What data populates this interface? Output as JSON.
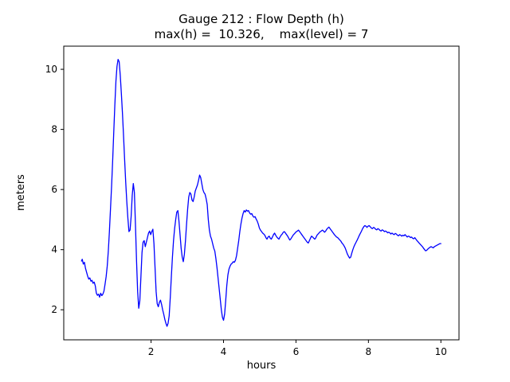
{
  "figure": {
    "title_line1": "Gauge 212 : Flow Depth (h)",
    "title_line2": "max(h) =  10.326,    max(level) = 7",
    "xlabel": "hours",
    "ylabel": "meters"
  },
  "chart_data": {
    "type": "line",
    "title": "Gauge 212 : Flow Depth (h)",
    "subtitle": "max(h) =  10.326,    max(level) = 7",
    "xlabel": "hours",
    "ylabel": "meters",
    "legend": "none",
    "grid": false,
    "line_color": "#0000ff",
    "line_width": 1.3,
    "xlim": [
      -0.41,
      10.5
    ],
    "ylim": [
      1.0,
      10.77
    ],
    "x_ticks": [
      2,
      4,
      6,
      8,
      10
    ],
    "y_ticks": [
      2,
      4,
      6,
      8,
      10
    ],
    "max_h": 10.326,
    "max_level": 7,
    "points": [
      [
        0.08,
        3.62
      ],
      [
        0.1,
        3.68
      ],
      [
        0.13,
        3.52
      ],
      [
        0.16,
        3.58
      ],
      [
        0.19,
        3.38
      ],
      [
        0.22,
        3.25
      ],
      [
        0.25,
        3.12
      ],
      [
        0.28,
        3.02
      ],
      [
        0.31,
        3.06
      ],
      [
        0.34,
        2.95
      ],
      [
        0.37,
        2.98
      ],
      [
        0.4,
        2.88
      ],
      [
        0.43,
        2.92
      ],
      [
        0.46,
        2.8
      ],
      [
        0.49,
        2.55
      ],
      [
        0.52,
        2.48
      ],
      [
        0.55,
        2.52
      ],
      [
        0.58,
        2.42
      ],
      [
        0.61,
        2.55
      ],
      [
        0.64,
        2.47
      ],
      [
        0.67,
        2.52
      ],
      [
        0.7,
        2.62
      ],
      [
        0.73,
        2.85
      ],
      [
        0.76,
        3.1
      ],
      [
        0.79,
        3.45
      ],
      [
        0.82,
        3.95
      ],
      [
        0.85,
        4.6
      ],
      [
        0.88,
        5.35
      ],
      [
        0.91,
        6.1
      ],
      [
        0.94,
        6.95
      ],
      [
        0.97,
        7.9
      ],
      [
        1.0,
        8.8
      ],
      [
        1.03,
        9.6
      ],
      [
        1.06,
        10.1
      ],
      [
        1.09,
        10.33
      ],
      [
        1.12,
        10.25
      ],
      [
        1.15,
        9.8
      ],
      [
        1.18,
        9.2
      ],
      [
        1.21,
        8.55
      ],
      [
        1.24,
        7.8
      ],
      [
        1.27,
        7.0
      ],
      [
        1.3,
        6.25
      ],
      [
        1.33,
        5.6
      ],
      [
        1.36,
        5.05
      ],
      [
        1.39,
        4.6
      ],
      [
        1.42,
        4.65
      ],
      [
        1.45,
        5.1
      ],
      [
        1.48,
        5.8
      ],
      [
        1.51,
        6.2
      ],
      [
        1.54,
        5.9
      ],
      [
        1.57,
        4.8
      ],
      [
        1.6,
        3.6
      ],
      [
        1.63,
        2.6
      ],
      [
        1.66,
        2.05
      ],
      [
        1.69,
        2.3
      ],
      [
        1.72,
        3.1
      ],
      [
        1.75,
        3.9
      ],
      [
        1.78,
        4.25
      ],
      [
        1.81,
        4.3
      ],
      [
        1.84,
        4.1
      ],
      [
        1.87,
        4.25
      ],
      [
        1.9,
        4.4
      ],
      [
        1.93,
        4.55
      ],
      [
        1.96,
        4.62
      ],
      [
        1.99,
        4.5
      ],
      [
        2.02,
        4.6
      ],
      [
        2.05,
        4.68
      ],
      [
        2.08,
        4.2
      ],
      [
        2.11,
        3.4
      ],
      [
        2.14,
        2.6
      ],
      [
        2.17,
        2.2
      ],
      [
        2.2,
        2.1
      ],
      [
        2.23,
        2.25
      ],
      [
        2.26,
        2.32
      ],
      [
        2.29,
        2.18
      ],
      [
        2.32,
        2.0
      ],
      [
        2.35,
        1.85
      ],
      [
        2.38,
        1.68
      ],
      [
        2.41,
        1.55
      ],
      [
        2.44,
        1.45
      ],
      [
        2.47,
        1.55
      ],
      [
        2.5,
        1.8
      ],
      [
        2.53,
        2.4
      ],
      [
        2.56,
        3.1
      ],
      [
        2.59,
        3.75
      ],
      [
        2.62,
        4.3
      ],
      [
        2.65,
        4.7
      ],
      [
        2.68,
        5.0
      ],
      [
        2.71,
        5.25
      ],
      [
        2.74,
        5.3
      ],
      [
        2.77,
        4.95
      ],
      [
        2.8,
        4.5
      ],
      [
        2.83,
        4.05
      ],
      [
        2.86,
        3.75
      ],
      [
        2.89,
        3.6
      ],
      [
        2.92,
        3.85
      ],
      [
        2.95,
        4.3
      ],
      [
        2.98,
        4.85
      ],
      [
        3.01,
        5.35
      ],
      [
        3.04,
        5.75
      ],
      [
        3.07,
        5.9
      ],
      [
        3.1,
        5.85
      ],
      [
        3.13,
        5.65
      ],
      [
        3.16,
        5.6
      ],
      [
        3.19,
        5.75
      ],
      [
        3.22,
        5.95
      ],
      [
        3.25,
        6.05
      ],
      [
        3.28,
        6.15
      ],
      [
        3.31,
        6.3
      ],
      [
        3.34,
        6.48
      ],
      [
        3.37,
        6.4
      ],
      [
        3.4,
        6.2
      ],
      [
        3.43,
        6.0
      ],
      [
        3.46,
        5.9
      ],
      [
        3.49,
        5.85
      ],
      [
        3.52,
        5.7
      ],
      [
        3.55,
        5.5
      ],
      [
        3.58,
        5.0
      ],
      [
        3.61,
        4.65
      ],
      [
        3.64,
        4.45
      ],
      [
        3.67,
        4.35
      ],
      [
        3.7,
        4.2
      ],
      [
        3.73,
        4.05
      ],
      [
        3.76,
        3.95
      ],
      [
        3.79,
        3.7
      ],
      [
        3.82,
        3.4
      ],
      [
        3.85,
        3.05
      ],
      [
        3.88,
        2.7
      ],
      [
        3.91,
        2.35
      ],
      [
        3.94,
        2.0
      ],
      [
        3.97,
        1.75
      ],
      [
        4.0,
        1.65
      ],
      [
        4.03,
        1.85
      ],
      [
        4.06,
        2.3
      ],
      [
        4.09,
        2.8
      ],
      [
        4.12,
        3.15
      ],
      [
        4.15,
        3.35
      ],
      [
        4.18,
        3.45
      ],
      [
        4.21,
        3.52
      ],
      [
        4.24,
        3.55
      ],
      [
        4.27,
        3.6
      ],
      [
        4.3,
        3.58
      ],
      [
        4.33,
        3.65
      ],
      [
        4.36,
        3.8
      ],
      [
        4.39,
        4.05
      ],
      [
        4.42,
        4.3
      ],
      [
        4.45,
        4.6
      ],
      [
        4.48,
        4.85
      ],
      [
        4.51,
        5.05
      ],
      [
        4.54,
        5.2
      ],
      [
        4.57,
        5.3
      ],
      [
        4.6,
        5.25
      ],
      [
        4.63,
        5.32
      ],
      [
        4.66,
        5.28
      ],
      [
        4.69,
        5.3
      ],
      [
        4.72,
        5.22
      ],
      [
        4.75,
        5.18
      ],
      [
        4.78,
        5.2
      ],
      [
        4.81,
        5.12
      ],
      [
        4.84,
        5.08
      ],
      [
        4.87,
        5.1
      ],
      [
        4.9,
        5.02
      ],
      [
        4.93,
        4.95
      ],
      [
        4.96,
        4.85
      ],
      [
        4.99,
        4.72
      ],
      [
        5.02,
        4.65
      ],
      [
        5.05,
        4.6
      ],
      [
        5.08,
        4.55
      ],
      [
        5.11,
        4.52
      ],
      [
        5.14,
        4.48
      ],
      [
        5.17,
        4.4
      ],
      [
        5.2,
        4.35
      ],
      [
        5.23,
        4.42
      ],
      [
        5.26,
        4.45
      ],
      [
        5.29,
        4.38
      ],
      [
        5.32,
        4.35
      ],
      [
        5.35,
        4.42
      ],
      [
        5.38,
        4.5
      ],
      [
        5.41,
        4.55
      ],
      [
        5.44,
        4.48
      ],
      [
        5.47,
        4.42
      ],
      [
        5.5,
        4.38
      ],
      [
        5.53,
        4.35
      ],
      [
        5.56,
        4.42
      ],
      [
        5.59,
        4.48
      ],
      [
        5.62,
        4.52
      ],
      [
        5.65,
        4.58
      ],
      [
        5.68,
        4.6
      ],
      [
        5.71,
        4.55
      ],
      [
        5.74,
        4.5
      ],
      [
        5.77,
        4.45
      ],
      [
        5.8,
        4.38
      ],
      [
        5.83,
        4.32
      ],
      [
        5.86,
        4.36
      ],
      [
        5.89,
        4.42
      ],
      [
        5.92,
        4.48
      ],
      [
        5.95,
        4.52
      ],
      [
        5.98,
        4.56
      ],
      [
        6.01,
        4.6
      ],
      [
        6.04,
        4.62
      ],
      [
        6.07,
        4.65
      ],
      [
        6.1,
        4.6
      ],
      [
        6.13,
        4.55
      ],
      [
        6.16,
        4.5
      ],
      [
        6.19,
        4.45
      ],
      [
        6.22,
        4.4
      ],
      [
        6.25,
        4.35
      ],
      [
        6.28,
        4.3
      ],
      [
        6.31,
        4.25
      ],
      [
        6.34,
        4.22
      ],
      [
        6.37,
        4.3
      ],
      [
        6.4,
        4.38
      ],
      [
        6.43,
        4.45
      ],
      [
        6.46,
        4.42
      ],
      [
        6.49,
        4.38
      ],
      [
        6.52,
        4.35
      ],
      [
        6.55,
        4.4
      ],
      [
        6.58,
        4.48
      ],
      [
        6.61,
        4.52
      ],
      [
        6.64,
        4.56
      ],
      [
        6.67,
        4.6
      ],
      [
        6.7,
        4.62
      ],
      [
        6.73,
        4.65
      ],
      [
        6.76,
        4.62
      ],
      [
        6.79,
        4.58
      ],
      [
        6.82,
        4.62
      ],
      [
        6.85,
        4.68
      ],
      [
        6.88,
        4.72
      ],
      [
        6.91,
        4.75
      ],
      [
        6.94,
        4.7
      ],
      [
        6.97,
        4.65
      ],
      [
        7.0,
        4.6
      ],
      [
        7.03,
        4.55
      ],
      [
        7.06,
        4.5
      ],
      [
        7.09,
        4.46
      ],
      [
        7.12,
        4.42
      ],
      [
        7.15,
        4.4
      ],
      [
        7.18,
        4.36
      ],
      [
        7.21,
        4.32
      ],
      [
        7.24,
        4.28
      ],
      [
        7.27,
        4.22
      ],
      [
        7.3,
        4.18
      ],
      [
        7.33,
        4.12
      ],
      [
        7.36,
        4.05
      ],
      [
        7.39,
        3.95
      ],
      [
        7.42,
        3.85
      ],
      [
        7.45,
        3.78
      ],
      [
        7.48,
        3.72
      ],
      [
        7.51,
        3.75
      ],
      [
        7.54,
        3.88
      ],
      [
        7.57,
        4.0
      ],
      [
        7.6,
        4.1
      ],
      [
        7.63,
        4.18
      ],
      [
        7.66,
        4.25
      ],
      [
        7.69,
        4.32
      ],
      [
        7.72,
        4.4
      ],
      [
        7.75,
        4.48
      ],
      [
        7.78,
        4.55
      ],
      [
        7.81,
        4.62
      ],
      [
        7.84,
        4.7
      ],
      [
        7.87,
        4.76
      ],
      [
        7.9,
        4.8
      ],
      [
        7.93,
        4.78
      ],
      [
        7.96,
        4.74
      ],
      [
        7.99,
        4.78
      ],
      [
        8.02,
        4.8
      ],
      [
        8.05,
        4.76
      ],
      [
        8.08,
        4.72
      ],
      [
        8.11,
        4.7
      ],
      [
        8.14,
        4.74
      ],
      [
        8.17,
        4.72
      ],
      [
        8.2,
        4.68
      ],
      [
        8.23,
        4.66
      ],
      [
        8.26,
        4.7
      ],
      [
        8.29,
        4.68
      ],
      [
        8.32,
        4.64
      ],
      [
        8.35,
        4.62
      ],
      [
        8.38,
        4.66
      ],
      [
        8.41,
        4.64
      ],
      [
        8.44,
        4.6
      ],
      [
        8.47,
        4.62
      ],
      [
        8.5,
        4.6
      ],
      [
        8.53,
        4.56
      ],
      [
        8.56,
        4.58
      ],
      [
        8.59,
        4.56
      ],
      [
        8.62,
        4.52
      ],
      [
        8.65,
        4.55
      ],
      [
        8.68,
        4.52
      ],
      [
        8.71,
        4.5
      ],
      [
        8.74,
        4.54
      ],
      [
        8.77,
        4.52
      ],
      [
        8.8,
        4.48
      ],
      [
        8.83,
        4.46
      ],
      [
        8.86,
        4.5
      ],
      [
        8.89,
        4.48
      ],
      [
        8.92,
        4.45
      ],
      [
        8.95,
        4.48
      ],
      [
        8.98,
        4.46
      ],
      [
        9.01,
        4.5
      ],
      [
        9.04,
        4.46
      ],
      [
        9.07,
        4.42
      ],
      [
        9.1,
        4.45
      ],
      [
        9.13,
        4.44
      ],
      [
        9.16,
        4.4
      ],
      [
        9.19,
        4.42
      ],
      [
        9.22,
        4.38
      ],
      [
        9.25,
        4.36
      ],
      [
        9.28,
        4.4
      ],
      [
        9.31,
        4.35
      ],
      [
        9.34,
        4.3
      ],
      [
        9.37,
        4.26
      ],
      [
        9.4,
        4.22
      ],
      [
        9.43,
        4.18
      ],
      [
        9.46,
        4.14
      ],
      [
        9.49,
        4.1
      ],
      [
        9.52,
        4.05
      ],
      [
        9.55,
        4.0
      ],
      [
        9.58,
        3.96
      ],
      [
        9.61,
        3.98
      ],
      [
        9.64,
        4.02
      ],
      [
        9.67,
        4.05
      ],
      [
        9.7,
        4.08
      ],
      [
        9.73,
        4.1
      ],
      [
        9.76,
        4.08
      ],
      [
        9.79,
        4.06
      ],
      [
        9.82,
        4.1
      ],
      [
        9.85,
        4.12
      ],
      [
        9.88,
        4.14
      ],
      [
        9.91,
        4.16
      ],
      [
        9.94,
        4.18
      ],
      [
        9.97,
        4.2
      ],
      [
        10.0,
        4.2
      ]
    ]
  }
}
